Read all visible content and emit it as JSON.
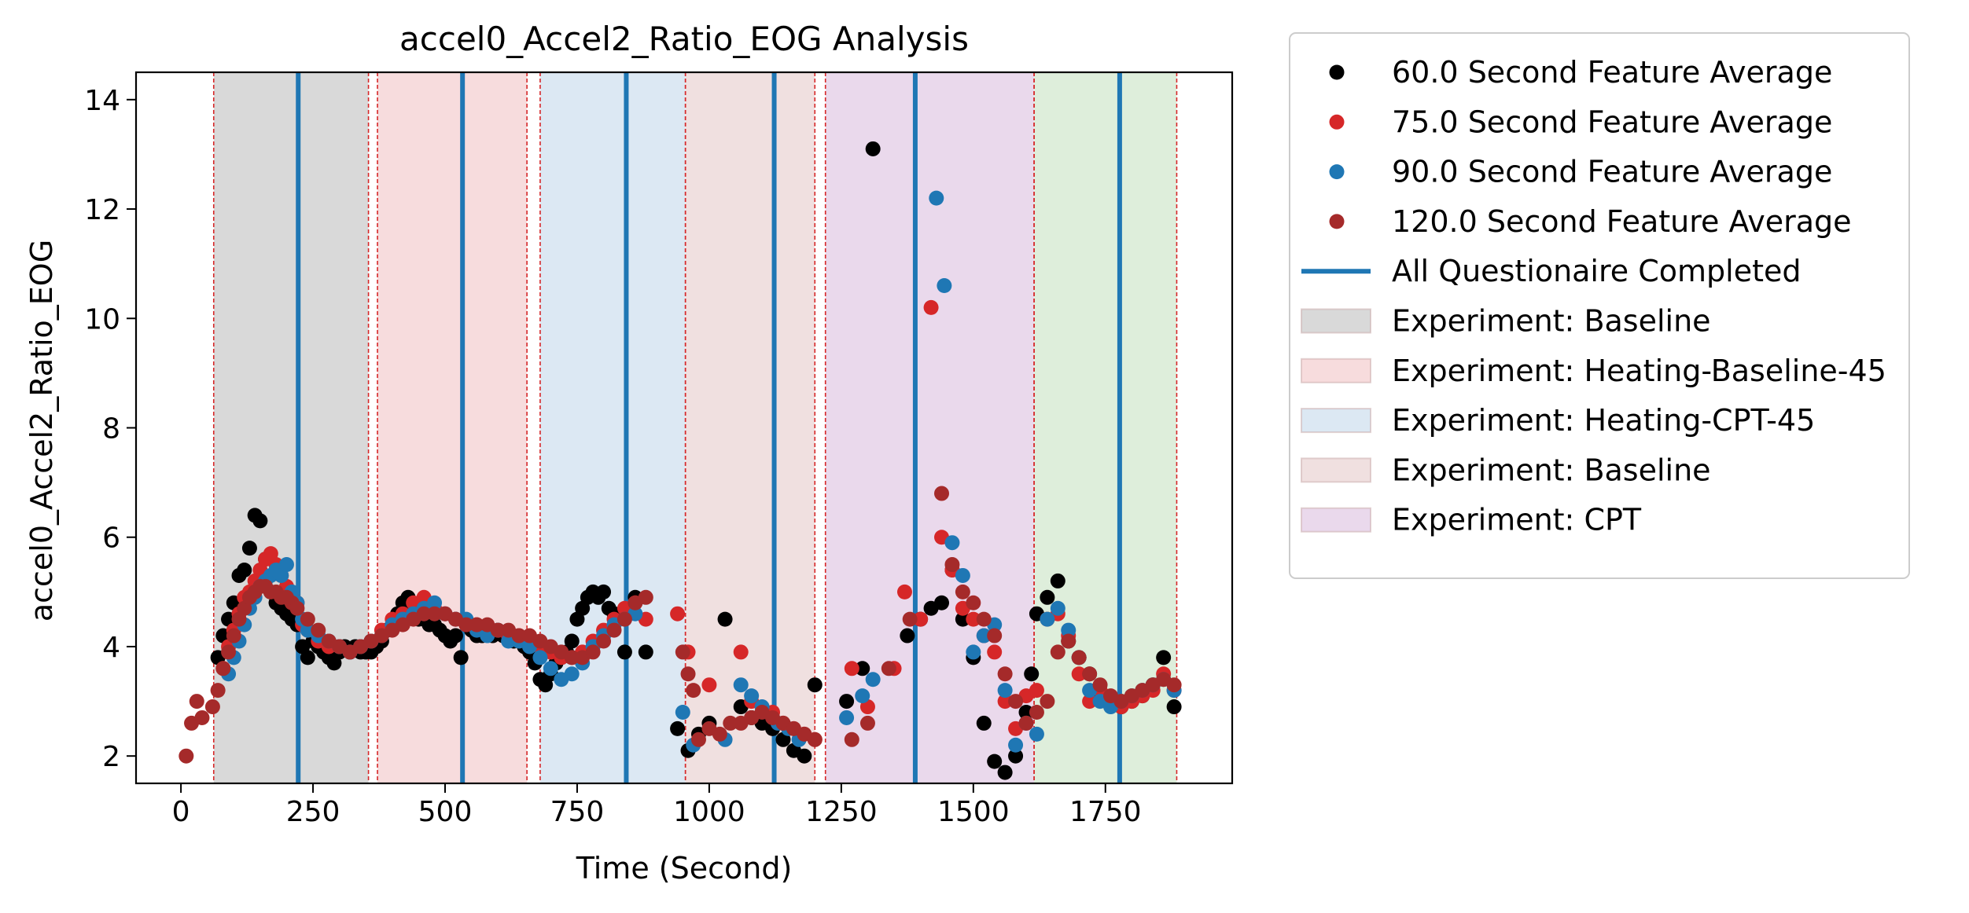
{
  "chart_data": {
    "type": "scatter",
    "title": "accel0_Accel2_Ratio_EOG Analysis",
    "xlabel": "Time (Second)",
    "ylabel": "accel0_Accel2_Ratio_EOG",
    "xlim": [
      -85,
      1990
    ],
    "ylim": [
      1.5,
      14.5
    ],
    "xticks": [
      0,
      250,
      500,
      750,
      1000,
      1250,
      1500,
      1750
    ],
    "yticks": [
      2,
      4,
      6,
      8,
      10,
      12,
      14
    ],
    "grid": false,
    "legend_position": "outside-right",
    "phases": [
      {
        "name": "Experiment: Baseline",
        "start": 62,
        "end": 355,
        "color": "#d9d9d9"
      },
      {
        "name": "Experiment: Heating-Baseline-45",
        "start": 372,
        "end": 655,
        "color": "#f7dcdd"
      },
      {
        "name": "Experiment: Heating-CPT-45",
        "start": 680,
        "end": 955,
        "color": "#dce8f3"
      },
      {
        "name": "Experiment: Baseline",
        "start": 955,
        "end": 1200,
        "color": "#f0e0e0"
      },
      {
        "name": "Experiment: CPT",
        "start": 1220,
        "end": 1615,
        "color": "#ead9ec"
      },
      {
        "name": "",
        "start": 1615,
        "end": 1885,
        "color": "#deeedb"
      }
    ],
    "questionnaire_lines": {
      "name": "All Questionaire Completed",
      "color": "#1f77b4",
      "x": [
        222,
        533,
        843,
        1123,
        1390,
        1777
      ]
    },
    "series": [
      {
        "name": "60.0 Second Feature Average",
        "color": "#000000",
        "x": [
          70,
          80,
          90,
          100,
          110,
          120,
          130,
          140,
          150,
          160,
          170,
          180,
          190,
          200,
          210,
          220,
          230,
          240,
          250,
          260,
          270,
          280,
          290,
          300,
          310,
          320,
          330,
          340,
          350,
          360,
          370,
          380,
          390,
          400,
          410,
          420,
          430,
          440,
          450,
          460,
          470,
          480,
          490,
          500,
          510,
          520,
          530,
          540,
          550,
          560,
          570,
          580,
          590,
          600,
          610,
          620,
          630,
          640,
          650,
          660,
          670,
          680,
          690,
          700,
          710,
          720,
          730,
          740,
          750,
          760,
          770,
          780,
          790,
          800,
          810,
          820,
          840,
          860,
          880,
          940,
          960,
          980,
          1000,
          1030,
          1060,
          1080,
          1100,
          1120,
          1140,
          1160,
          1180,
          1200,
          1260,
          1290,
          1310,
          1375,
          1400,
          1420,
          1440,
          1460,
          1480,
          1500,
          1520,
          1540,
          1560,
          1580,
          1600,
          1610,
          1620,
          1640,
          1660,
          1680,
          1700,
          1720,
          1740,
          1760,
          1780,
          1800,
          1820,
          1840,
          1860,
          1880
        ],
        "y": [
          3.8,
          4.2,
          4.5,
          4.8,
          5.3,
          5.4,
          5.8,
          6.4,
          6.3,
          5.6,
          5.0,
          4.8,
          4.7,
          4.6,
          4.5,
          4.4,
          4.0,
          3.8,
          4.1,
          4.0,
          3.9,
          3.8,
          3.7,
          3.9,
          4.0,
          3.9,
          4.0,
          3.9,
          3.9,
          3.9,
          4.0,
          4.1,
          4.3,
          4.4,
          4.6,
          4.8,
          4.9,
          4.7,
          4.5,
          4.5,
          4.4,
          4.4,
          4.3,
          4.2,
          4.1,
          4.2,
          3.8,
          4.4,
          4.3,
          4.2,
          4.2,
          4.3,
          4.2,
          4.3,
          4.2,
          4.2,
          4.1,
          4.1,
          4.0,
          3.9,
          3.7,
          3.4,
          3.3,
          3.5,
          3.7,
          3.8,
          3.9,
          4.1,
          4.5,
          4.7,
          4.9,
          5.0,
          4.9,
          5.0,
          4.7,
          4.6,
          3.9,
          4.9,
          3.9,
          2.5,
          2.1,
          2.4,
          2.6,
          4.5,
          2.9,
          2.7,
          2.6,
          2.5,
          2.3,
          2.1,
          2.0,
          3.3,
          3.0,
          3.6,
          13.1,
          4.2,
          4.5,
          4.7,
          4.8,
          5.4,
          4.5,
          3.8,
          2.6,
          1.9,
          1.7,
          2.0,
          2.8,
          3.5,
          4.6,
          4.9,
          5.2,
          4.1,
          3.8,
          3.5,
          3.1,
          3.0,
          2.9,
          3.0,
          3.1,
          3.3,
          3.8,
          2.9
        ]
      },
      {
        "name": "75.0 Second Feature Average",
        "color": "#d62728",
        "x": [
          80,
          90,
          100,
          110,
          120,
          130,
          140,
          150,
          160,
          170,
          180,
          190,
          200,
          210,
          220,
          230,
          240,
          260,
          280,
          300,
          320,
          340,
          360,
          380,
          400,
          420,
          440,
          460,
          480,
          500,
          520,
          540,
          560,
          580,
          600,
          620,
          640,
          660,
          680,
          700,
          720,
          740,
          760,
          780,
          800,
          820,
          840,
          860,
          880,
          940,
          960,
          1000,
          1060,
          1080,
          1120,
          1140,
          1160,
          1180,
          1200,
          1270,
          1300,
          1350,
          1370,
          1400,
          1420,
          1440,
          1460,
          1480,
          1500,
          1520,
          1540,
          1560,
          1580,
          1600,
          1620,
          1640,
          1660,
          1680,
          1700,
          1720,
          1740,
          1760,
          1780,
          1800,
          1820,
          1840,
          1860,
          1880
        ],
        "y": [
          3.6,
          4.0,
          4.3,
          4.6,
          4.9,
          5.0,
          5.2,
          5.4,
          5.6,
          5.7,
          5.5,
          5.3,
          5.1,
          4.9,
          4.8,
          4.4,
          4.3,
          4.1,
          4.0,
          4.0,
          3.9,
          4.0,
          4.1,
          4.3,
          4.5,
          4.6,
          4.8,
          4.9,
          4.7,
          4.6,
          4.5,
          4.4,
          4.4,
          4.3,
          4.3,
          4.2,
          4.2,
          4.1,
          4.0,
          3.9,
          3.8,
          3.8,
          3.9,
          4.1,
          4.3,
          4.5,
          4.7,
          4.8,
          4.5,
          4.6,
          3.9,
          3.3,
          3.9,
          3.0,
          2.8,
          2.6,
          2.5,
          2.4,
          2.3,
          3.6,
          2.9,
          3.6,
          5.0,
          4.5,
          10.2,
          6.0,
          5.4,
          4.7,
          4.5,
          4.2,
          3.9,
          3.0,
          2.5,
          3.1,
          3.2,
          4.5,
          4.6,
          4.2,
          3.5,
          3.0,
          3.2,
          3.0,
          2.9,
          3.0,
          3.1,
          3.2,
          3.5,
          3.2
        ]
      },
      {
        "name": "90.0 Second Feature Average",
        "color": "#1f77b4",
        "x": [
          90,
          100,
          110,
          120,
          130,
          140,
          150,
          160,
          170,
          180,
          190,
          200,
          210,
          220,
          230,
          240,
          260,
          280,
          300,
          320,
          340,
          360,
          380,
          400,
          420,
          440,
          460,
          480,
          500,
          520,
          540,
          560,
          580,
          600,
          620,
          640,
          660,
          680,
          700,
          720,
          740,
          760,
          780,
          800,
          820,
          840,
          860,
          950,
          970,
          1030,
          1060,
          1080,
          1100,
          1130,
          1150,
          1170,
          1260,
          1290,
          1310,
          1430,
          1445,
          1460,
          1480,
          1500,
          1520,
          1540,
          1560,
          1580,
          1600,
          1620,
          1640,
          1660,
          1680,
          1700,
          1720,
          1740,
          1760,
          1780,
          1800,
          1820,
          1840,
          1860,
          1880
        ],
        "y": [
          3.5,
          3.8,
          4.1,
          4.4,
          4.7,
          4.9,
          5.1,
          5.2,
          5.3,
          5.4,
          5.3,
          5.5,
          5.0,
          4.8,
          4.5,
          4.3,
          4.2,
          4.1,
          4.0,
          3.9,
          4.0,
          4.1,
          4.2,
          4.4,
          4.5,
          4.6,
          4.7,
          4.8,
          4.6,
          4.5,
          4.5,
          4.3,
          4.2,
          4.3,
          4.1,
          4.1,
          4.0,
          3.8,
          3.6,
          3.4,
          3.5,
          3.7,
          4.0,
          4.2,
          4.4,
          4.5,
          4.6,
          2.8,
          2.2,
          2.3,
          3.3,
          3.1,
          2.9,
          2.6,
          2.5,
          2.3,
          2.7,
          3.1,
          3.4,
          12.2,
          10.6,
          5.9,
          5.3,
          3.9,
          4.2,
          4.4,
          3.2,
          2.2,
          2.6,
          2.4,
          4.5,
          4.7,
          4.3,
          3.8,
          3.2,
          3.0,
          2.9,
          3.0,
          3.1,
          3.2,
          3.3,
          3.4,
          3.2
        ]
      },
      {
        "name": "120.0 Second Feature Average",
        "color": "#a52a2a",
        "x": [
          10,
          20,
          30,
          40,
          60,
          70,
          80,
          90,
          100,
          110,
          120,
          130,
          140,
          150,
          160,
          170,
          180,
          190,
          200,
          210,
          220,
          240,
          260,
          280,
          300,
          320,
          340,
          360,
          380,
          400,
          420,
          440,
          460,
          480,
          500,
          520,
          540,
          560,
          580,
          600,
          620,
          640,
          660,
          680,
          700,
          720,
          740,
          760,
          780,
          800,
          820,
          840,
          860,
          880,
          950,
          960,
          970,
          980,
          1000,
          1020,
          1040,
          1060,
          1080,
          1100,
          1120,
          1140,
          1160,
          1180,
          1200,
          1270,
          1300,
          1340,
          1380,
          1440,
          1460,
          1480,
          1500,
          1520,
          1540,
          1560,
          1580,
          1600,
          1620,
          1640,
          1660,
          1680,
          1700,
          1720,
          1740,
          1760,
          1780,
          1800,
          1820,
          1840,
          1860,
          1880
        ],
        "y": [
          2.0,
          2.6,
          3.0,
          2.7,
          2.9,
          3.2,
          3.6,
          3.9,
          4.2,
          4.5,
          4.7,
          4.9,
          5.0,
          5.1,
          5.1,
          5.0,
          5.0,
          4.9,
          4.9,
          4.8,
          4.7,
          4.5,
          4.3,
          4.1,
          4.0,
          3.9,
          4.0,
          4.1,
          4.2,
          4.3,
          4.4,
          4.5,
          4.6,
          4.6,
          4.6,
          4.5,
          4.4,
          4.4,
          4.4,
          4.3,
          4.3,
          4.2,
          4.2,
          4.1,
          4.0,
          3.9,
          3.8,
          3.8,
          3.9,
          4.1,
          4.3,
          4.5,
          4.8,
          4.9,
          3.9,
          3.5,
          3.2,
          2.3,
          2.5,
          2.4,
          2.6,
          2.6,
          2.7,
          2.8,
          2.7,
          2.6,
          2.5,
          2.4,
          2.3,
          2.3,
          2.6,
          3.6,
          4.5,
          6.8,
          5.5,
          5.0,
          4.8,
          4.5,
          4.2,
          3.5,
          3.0,
          2.6,
          2.8,
          3.0,
          3.9,
          4.1,
          3.8,
          3.5,
          3.3,
          3.1,
          3.0,
          3.1,
          3.2,
          3.3,
          3.4,
          3.3
        ]
      }
    ],
    "legend": [
      {
        "kind": "point",
        "label": "60.0 Second Feature Average",
        "color": "#000000"
      },
      {
        "kind": "point",
        "label": "75.0 Second Feature Average",
        "color": "#d62728"
      },
      {
        "kind": "point",
        "label": "90.0 Second Feature Average",
        "color": "#1f77b4"
      },
      {
        "kind": "point",
        "label": "120.0 Second Feature Average",
        "color": "#a52a2a"
      },
      {
        "kind": "line",
        "label": "All Questionaire Completed",
        "color": "#1f77b4"
      },
      {
        "kind": "patch",
        "label": "Experiment: Baseline",
        "color": "#d9d9d9"
      },
      {
        "kind": "patch",
        "label": "Experiment: Heating-Baseline-45",
        "color": "#f7dcdd"
      },
      {
        "kind": "patch",
        "label": "Experiment: Heating-CPT-45",
        "color": "#dce8f3"
      },
      {
        "kind": "patch",
        "label": "Experiment: Baseline",
        "color": "#f0e0e0"
      },
      {
        "kind": "patch",
        "label": "Experiment: CPT",
        "color": "#ead9ec"
      }
    ]
  }
}
